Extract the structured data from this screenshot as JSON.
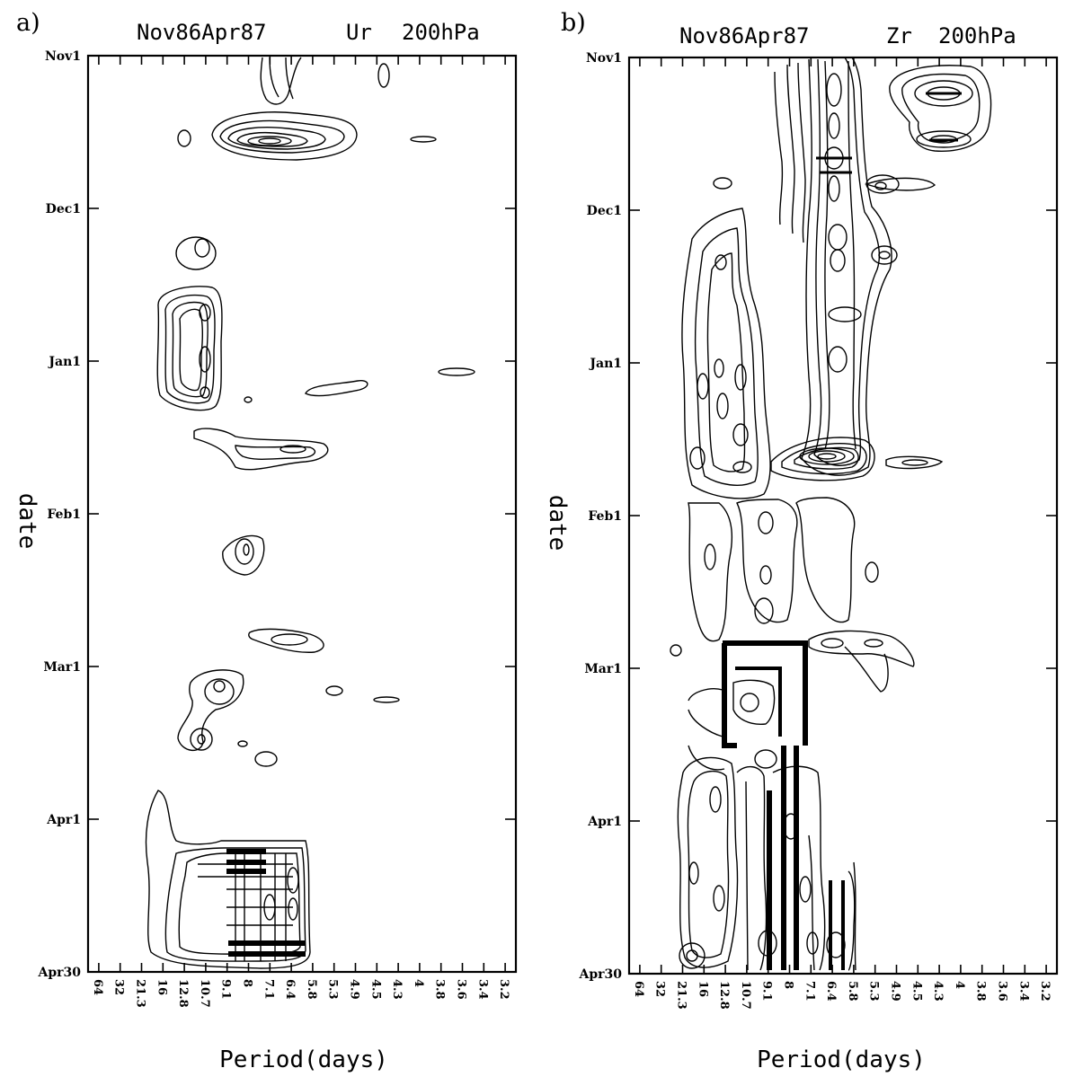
{
  "chart_data": [
    {
      "type": "heatmap",
      "panel": "a)",
      "title": "Nov86Apr87",
      "variable": "Ur",
      "level": "200hPa",
      "xlabel": "Period(days)",
      "ylabel": "date",
      "x_ticks": [
        "64",
        "32",
        "21.3",
        "16",
        "12.8",
        "10.7",
        "9.1",
        "8",
        "7.1",
        "6.4",
        "5.8",
        "5.3",
        "4.9",
        "4.5",
        "4.3",
        "4",
        "3.8",
        "3.6",
        "3.4",
        "3.2"
      ],
      "y_ticks": [
        "Nov1",
        "Dec1",
        "Jan1",
        "Feb1",
        "Mar1",
        "Apr1",
        "Apr30"
      ],
      "contour_centers": [
        {
          "period": "4.5",
          "date": "Nov1"
        },
        {
          "period": "7.1",
          "date": "Nov14"
        },
        {
          "period": "16",
          "date": "Nov14"
        },
        {
          "period": "4.3",
          "date": "Nov14"
        },
        {
          "period": "10.7",
          "date": "Dec8"
        },
        {
          "period": "10.7",
          "date": "Dec20"
        },
        {
          "period": "10.7",
          "date": "Jan3"
        },
        {
          "period": "4.9",
          "date": "Jan6"
        },
        {
          "period": "3.6",
          "date": "Jan3"
        },
        {
          "period": "6.4",
          "date": "Jan19"
        },
        {
          "period": "8",
          "date": "Feb7"
        },
        {
          "period": "7.1",
          "date": "Feb24"
        },
        {
          "period": "10.7",
          "date": "Mar5"
        },
        {
          "period": "10.7",
          "date": "Mar14"
        },
        {
          "period": "5.3",
          "date": "Mar5"
        },
        {
          "period": "4.5",
          "date": "Mar7"
        },
        {
          "period": "8",
          "date": "Apr9"
        },
        {
          "period": "7.1",
          "date": "Apr28"
        }
      ]
    },
    {
      "type": "heatmap",
      "panel": "b)",
      "title": "Nov86Apr87",
      "variable": "Zr",
      "level": "200hPa",
      "xlabel": "Period(days)",
      "ylabel": "date",
      "x_ticks": [
        "64",
        "32",
        "21.3",
        "16",
        "12.8",
        "10.7",
        "9.1",
        "8",
        "7.1",
        "6.4",
        "5.8",
        "5.3",
        "4.9",
        "4.5",
        "4.3",
        "4",
        "3.8",
        "3.6",
        "3.4",
        "3.2"
      ],
      "y_ticks": [
        "Nov1",
        "Dec1",
        "Jan1",
        "Feb1",
        "Mar1",
        "Apr1",
        "Apr30"
      ],
      "contour_centers": [
        {
          "period": "6.4",
          "date": "Nov8"
        },
        {
          "period": "4",
          "date": "Nov8"
        },
        {
          "period": "4",
          "date": "Nov17"
        },
        {
          "period": "4.9",
          "date": "Nov25"
        },
        {
          "period": "5.3",
          "date": "Dec10"
        },
        {
          "period": "6.4",
          "date": "Dec10"
        },
        {
          "period": "10.7",
          "date": "Jan5"
        },
        {
          "period": "6.4",
          "date": "Jan19"
        },
        {
          "period": "4.5",
          "date": "Jan21"
        },
        {
          "period": "10.7",
          "date": "Feb10"
        },
        {
          "period": "4.9",
          "date": "Feb12"
        },
        {
          "period": "5.3",
          "date": "Feb28"
        },
        {
          "period": "9.1",
          "date": "Mar12"
        },
        {
          "period": "8",
          "date": "Apr15"
        },
        {
          "period": "6.4",
          "date": "Apr22"
        },
        {
          "period": "16",
          "date": "Apr28"
        }
      ]
    }
  ]
}
